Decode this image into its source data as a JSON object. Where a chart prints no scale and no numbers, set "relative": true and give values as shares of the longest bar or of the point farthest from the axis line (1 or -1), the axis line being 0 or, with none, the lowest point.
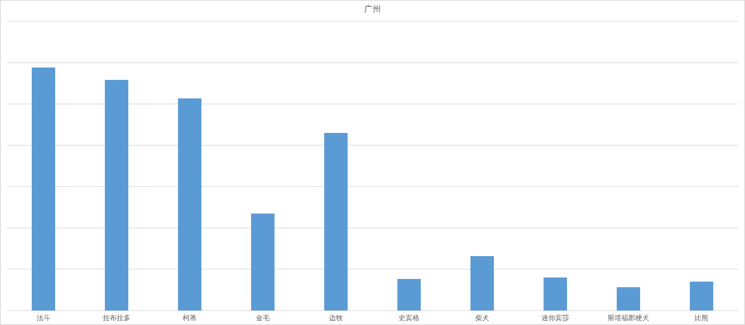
{
  "chart_data": {
    "type": "bar",
    "title": "广州",
    "categories": [
      "法斗",
      "拉布拉多",
      "柯基",
      "金毛",
      "边牧",
      "史宾格",
      "柴犬",
      "迷你宾莎",
      "斯塔福郡梗犬",
      "比熊"
    ],
    "values": [
      1,
      0.949,
      0.873,
      0.399,
      0.731,
      0.13,
      0.224,
      0.136,
      0.096,
      0.119
    ],
    "color": "#5b9bd5",
    "relative": true,
    "grid": "y"
  }
}
